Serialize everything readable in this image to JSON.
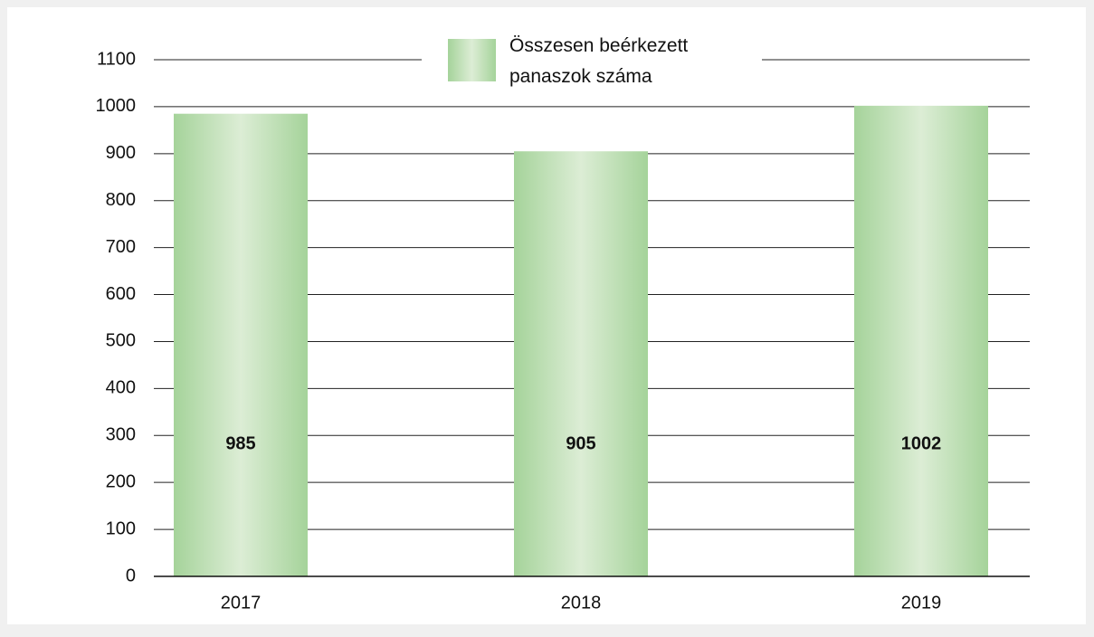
{
  "chart_data": {
    "type": "bar",
    "categories": [
      "2017",
      "2018",
      "2019"
    ],
    "series": [
      {
        "name": "Összesen beérkezett panaszok száma",
        "color": "#a5d39a",
        "values": [
          985,
          905,
          1002
        ]
      }
    ],
    "ylim": [
      0,
      1100
    ],
    "yticks": [
      0,
      100,
      200,
      300,
      400,
      500,
      600,
      700,
      800,
      900,
      1000,
      1100
    ],
    "grid": true,
    "legend": "top"
  }
}
